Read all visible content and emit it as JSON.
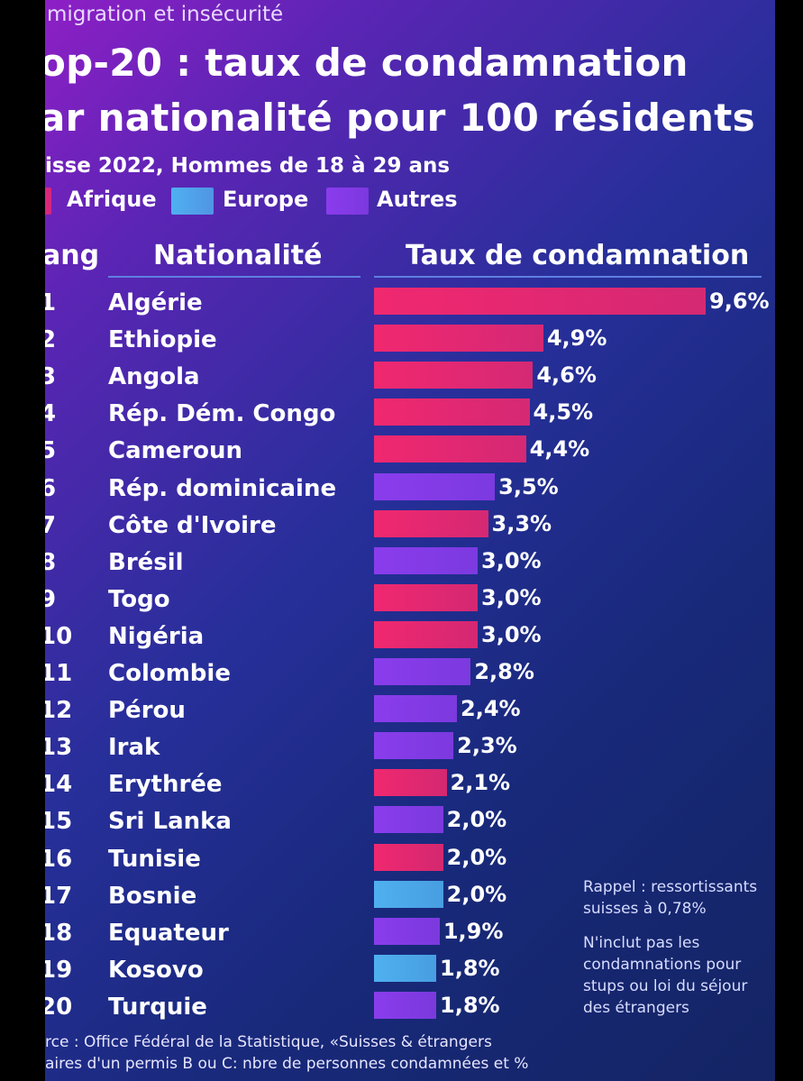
{
  "header": {
    "topline": "migration et insécurité",
    "title_line1": "op-20 : taux de condamnation",
    "title_line2": "ar nationalité pour 100 résidents",
    "subtitle": "isse 2022, Hommes de 18 à 29 ans"
  },
  "legend": [
    {
      "label": "Afrique",
      "color": "#f0286f"
    },
    {
      "label": "Europe",
      "color": "#4fb0f0"
    },
    {
      "label": "Autres",
      "color": "#8a3cec"
    }
  ],
  "columns": {
    "rank": "ang",
    "nationality": "Nationalité",
    "rate": "Taux de condamnation"
  },
  "chart_data": {
    "type": "bar",
    "orientation": "horizontal",
    "title": "op-20 : taux de condamnation ar nationalité pour 100 résidents",
    "subtitle": "isse 2022, Hommes de 18 à 29 ans",
    "ylabel": "Taux de condamnation",
    "legend_placement": "top-left",
    "grid": false,
    "rows": [
      {
        "rank": "1",
        "name": "Algérie",
        "value": 9.6,
        "label": "9,6%",
        "group": "Afrique"
      },
      {
        "rank": "2",
        "name": "Ethiopie",
        "value": 4.9,
        "label": "4,9%",
        "group": "Afrique"
      },
      {
        "rank": "3",
        "name": "Angola",
        "value": 4.6,
        "label": "4,6%",
        "group": "Afrique"
      },
      {
        "rank": "4",
        "name": "Rép. Dém. Congo",
        "value": 4.5,
        "label": "4,5%",
        "group": "Afrique"
      },
      {
        "rank": "5",
        "name": "Cameroun",
        "value": 4.4,
        "label": "4,4%",
        "group": "Afrique"
      },
      {
        "rank": "6",
        "name": "Rép. dominicaine",
        "value": 3.5,
        "label": "3,5%",
        "group": "Autres"
      },
      {
        "rank": "7",
        "name": "Côte d'Ivoire",
        "value": 3.3,
        "label": "3,3%",
        "group": "Afrique"
      },
      {
        "rank": "8",
        "name": "Brésil",
        "value": 3.0,
        "label": "3,0%",
        "group": "Autres"
      },
      {
        "rank": "9",
        "name": "Togo",
        "value": 3.0,
        "label": "3,0%",
        "group": "Afrique"
      },
      {
        "rank": "10",
        "name": "Nigéria",
        "value": 3.0,
        "label": "3,0%",
        "group": "Afrique"
      },
      {
        "rank": "11",
        "name": "Colombie",
        "value": 2.8,
        "label": "2,8%",
        "group": "Autres"
      },
      {
        "rank": "12",
        "name": "Pérou",
        "value": 2.4,
        "label": "2,4%",
        "group": "Autres"
      },
      {
        "rank": "13",
        "name": "Irak",
        "value": 2.3,
        "label": "2,3%",
        "group": "Autres"
      },
      {
        "rank": "14",
        "name": "Erythrée",
        "value": 2.1,
        "label": "2,1%",
        "group": "Afrique"
      },
      {
        "rank": "15",
        "name": "Sri Lanka",
        "value": 2.0,
        "label": "2,0%",
        "group": "Autres"
      },
      {
        "rank": "16",
        "name": "Tunisie",
        "value": 2.0,
        "label": "2,0%",
        "group": "Afrique"
      },
      {
        "rank": "17",
        "name": "Bosnie",
        "value": 2.0,
        "label": "2,0%",
        "group": "Europe"
      },
      {
        "rank": "18",
        "name": "Equateur",
        "value": 1.9,
        "label": "1,9%",
        "group": "Autres"
      },
      {
        "rank": "19",
        "name": "Kosovo",
        "value": 1.8,
        "label": "1,8%",
        "group": "Europe"
      },
      {
        "rank": "20",
        "name": "Turquie",
        "value": 1.8,
        "label": "1,8%",
        "group": "Autres"
      }
    ]
  },
  "notes": {
    "note1": "Rappel : ressortissants suisses à 0,78%",
    "note2": "N'inclut pas les condamnations pour stups ou loi du séjour des étrangers"
  },
  "source": {
    "line1": "rce : Office Fédéral de la Statistique, «Suisses & étrangers",
    "line2": "aires d'un permis B ou C: nbre de personnes condamnées et %"
  }
}
